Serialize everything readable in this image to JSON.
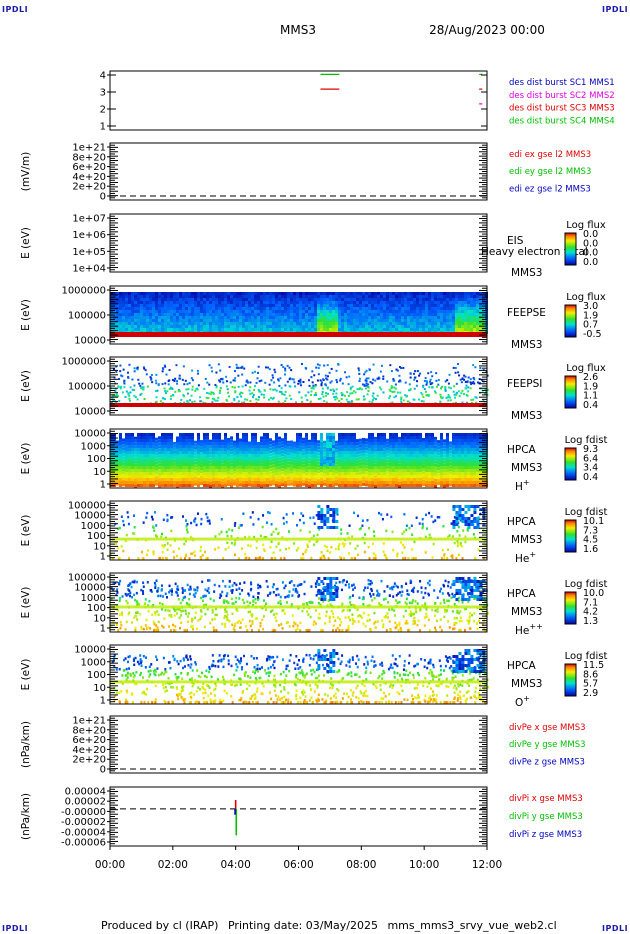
{
  "corner_label": "IPDLI",
  "header": {
    "mission": "MMS3",
    "date": "28/Aug/2023 00:00"
  },
  "footer": {
    "produced_by": "Produced by  cl (IRAP)",
    "printing_date": "Printing date: 03/May/2025",
    "filename": "mms_mms3_srvy_vue_web2.cl"
  },
  "colors": {
    "red": "#e00000",
    "green": "#00c000",
    "blue": "#0000c0",
    "magenta": "#e000e0"
  },
  "chart_data": {
    "type": "heatmap",
    "x_axis": {
      "ticks": [
        "00:00",
        "02:00",
        "04:00",
        "06:00",
        "08:00",
        "10:00",
        "12:00"
      ],
      "range_hours": [
        0,
        12
      ]
    },
    "panels": [
      {
        "id": "burst",
        "ylabel": "",
        "ticks": [
          "4",
          "3",
          "2",
          "1"
        ],
        "legend": [
          {
            "text": "des dist burst SC1 MMS1",
            "color": "#0000c0"
          },
          {
            "text": "des dist burst SC2 MMS2",
            "color": "#e000e0"
          },
          {
            "text": "des dist burst SC3 MMS3",
            "color": "#e00000"
          },
          {
            "text": "des dist burst SC4 MMS4",
            "color": "#00c000"
          }
        ],
        "intervals": [
          {
            "sc": 4,
            "start_h": 6.7,
            "end_h": 7.3,
            "color": "#00c000"
          },
          {
            "sc": 3,
            "start_h": 6.7,
            "end_h": 7.3,
            "color": "#e00000"
          },
          {
            "sc": 4,
            "start_h": 11.75,
            "end_h": 11.85,
            "color": "#00c000"
          },
          {
            "sc": 3,
            "start_h": 11.75,
            "end_h": 11.85,
            "color": "#e00000"
          },
          {
            "sc": 2,
            "start_h": 11.75,
            "end_h": 11.85,
            "color": "#e000e0"
          }
        ]
      },
      {
        "id": "edi",
        "ylabel": "(mV/m)",
        "ticks": [
          "1e+21",
          "8e+20",
          "6e+20",
          "4e+20",
          "2e+20",
          "0"
        ],
        "legend": [
          {
            "text": "edi ex gse l2 MMS3",
            "color": "#e00000"
          },
          {
            "text": "edi ey gse l2 MMS3",
            "color": "#00c000"
          },
          {
            "text": "edi ez gse l2 MMS3",
            "color": "#0000c0"
          }
        ]
      },
      {
        "id": "eis",
        "ylabel": "E (eV)",
        "ticks": [
          "1e+07",
          "1e+06",
          "1e+05",
          "1e+04"
        ],
        "instrument": "EIS",
        "overlay_text": "Heavy electron total",
        "sc": "MMS3",
        "colorbar": {
          "title": "Log flux",
          "labels": [
            "0.0",
            "0.0",
            "0.0",
            "0.0"
          ]
        }
      },
      {
        "id": "feepse",
        "ylabel": "E (eV)",
        "ticks": [
          "1000000",
          "100000",
          "10000"
        ],
        "instrument": "FEEPSE",
        "sc": "MMS3",
        "colorbar": {
          "title": "Log flux",
          "labels": [
            "3.0",
            "1.9",
            "0.7",
            "-0.5"
          ]
        }
      },
      {
        "id": "feepsi",
        "ylabel": "E (eV)",
        "ticks": [
          "1000000",
          "100000",
          "10000"
        ],
        "instrument": "FEEPSI",
        "sc": "MMS3",
        "colorbar": {
          "title": "Log flux",
          "labels": [
            "2.6",
            "1.9",
            "1.1",
            "0.4"
          ]
        }
      },
      {
        "id": "hpca_h",
        "ylabel": "E (eV)",
        "ticks": [
          "10000",
          "1000",
          "100",
          "10",
          "1"
        ],
        "instrument": "HPCA",
        "sc": "MMS3",
        "species": "H",
        "species_sup": "+",
        "colorbar": {
          "title": "Log fdist",
          "labels": [
            "9.3",
            "6.4",
            "3.4",
            "0.4"
          ]
        }
      },
      {
        "id": "hpca_he",
        "ylabel": "E (eV)",
        "ticks": [
          "100000",
          "10000",
          "1000",
          "100",
          "10",
          "1"
        ],
        "instrument": "HPCA",
        "sc": "MMS3",
        "species": "He",
        "species_sup": "+",
        "colorbar": {
          "title": "Log fdist",
          "labels": [
            "10.1",
            "7.3",
            "4.5",
            "1.6"
          ]
        }
      },
      {
        "id": "hpca_he2",
        "ylabel": "E (eV)",
        "ticks": [
          "100000",
          "10000",
          "1000",
          "100",
          "10",
          "1"
        ],
        "instrument": "HPCA",
        "sc": "MMS3",
        "species": "He",
        "species_sup": "++",
        "colorbar": {
          "title": "Log fdist",
          "labels": [
            "10.0",
            "7.1",
            "4.2",
            "1.3"
          ]
        }
      },
      {
        "id": "hpca_o",
        "ylabel": "E (eV)",
        "ticks": [
          "10000",
          "1000",
          "100",
          "10",
          "1"
        ],
        "instrument": "HPCA",
        "sc": "MMS3",
        "species": "O",
        "species_sup": "+",
        "colorbar": {
          "title": "Log fdist",
          "labels": [
            "11.5",
            "8.6",
            "5.7",
            "2.9"
          ]
        }
      },
      {
        "id": "divpe",
        "ylabel": "(nPa/km)",
        "ticks": [
          "1e+21",
          "8e+20",
          "6e+20",
          "4e+20",
          "2e+20",
          "0"
        ],
        "legend": [
          {
            "text": "divPe x gse MMS3",
            "color": "#e00000"
          },
          {
            "text": "divPe y gse MMS3",
            "color": "#00c000"
          },
          {
            "text": "divPe z gse MMS3",
            "color": "#0000c0"
          }
        ]
      },
      {
        "id": "divpi",
        "ylabel": "(nPa/km)",
        "ticks": [
          "0.00004",
          "0.00002",
          "-0.00000",
          "-0.00002",
          "-0.00004",
          "-0.00006"
        ],
        "legend": [
          {
            "text": "divPi x gse MMS3",
            "color": "#e00000"
          },
          {
            "text": "divPi y gse MMS3",
            "color": "#00c000"
          },
          {
            "text": "divPi z gse MMS3",
            "color": "#0000c0"
          }
        ],
        "spike": {
          "time_h": 4.0,
          "values": {
            "x": 1.5e-05,
            "y": -4.5e-05,
            "z": -1e-05
          }
        }
      }
    ]
  }
}
